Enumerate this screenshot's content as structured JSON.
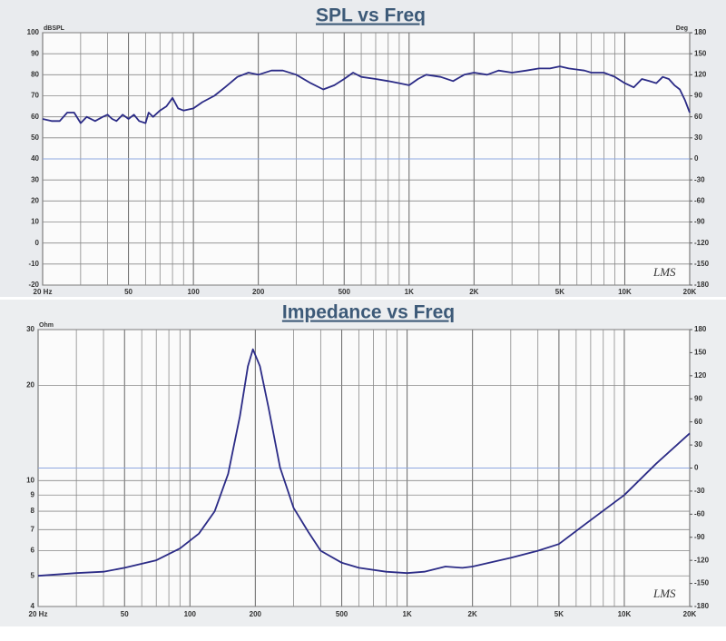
{
  "chart_data": [
    {
      "type": "line",
      "title": "SPL vs Freq",
      "ylabel": "dBSPL",
      "y2label": "Deg",
      "annotation": "LMS",
      "xscale": "log",
      "yscale": "linear",
      "color": "#2b2b86",
      "grid": true,
      "zero_line_color": "#8fa8e0",
      "xlim": [
        20,
        20000
      ],
      "xticks": [
        {
          "value": 20,
          "label": "20 Hz"
        },
        50,
        100,
        200,
        500,
        {
          "value": 1000,
          "label": "1K"
        },
        {
          "value": 2000,
          "label": "2K"
        },
        {
          "value": 5000,
          "label": "5K"
        },
        {
          "value": 10000,
          "label": "10K"
        },
        {
          "value": 20000,
          "label": "20K"
        }
      ],
      "xminor": [
        30,
        40,
        60,
        70,
        80,
        90,
        300,
        400,
        600,
        700,
        800,
        900,
        3000,
        4000,
        6000,
        7000,
        8000,
        9000
      ],
      "ylim": [
        -20,
        100
      ],
      "yticks": [
        -20,
        -10,
        0,
        10,
        20,
        30,
        40,
        50,
        60,
        70,
        80,
        90,
        100
      ],
      "y2lim": [
        -180,
        180
      ],
      "y2ticks": [
        -180,
        -150,
        -120,
        -90,
        -60,
        -30,
        0,
        30,
        60,
        90,
        120,
        150,
        180
      ],
      "x": [
        20,
        22,
        24,
        26,
        28,
        30,
        32,
        35,
        38,
        40,
        42,
        44,
        47,
        50,
        53,
        56,
        60,
        62,
        65,
        70,
        75,
        80,
        85,
        90,
        100,
        110,
        125,
        140,
        160,
        180,
        200,
        230,
        260,
        300,
        350,
        400,
        450,
        500,
        550,
        600,
        700,
        800,
        900,
        1000,
        1100,
        1200,
        1400,
        1600,
        1800,
        2000,
        2300,
        2600,
        3000,
        3500,
        4000,
        4500,
        5000,
        5500,
        6500,
        7000,
        8000,
        9000,
        10000,
        11000,
        12000,
        13000,
        14000,
        15000,
        16000,
        17000,
        18000,
        19000,
        20000
      ],
      "values": [
        59,
        58,
        58,
        62,
        62,
        57,
        60,
        58,
        60,
        61,
        59,
        58,
        61,
        59,
        61,
        58,
        57,
        62,
        60,
        63,
        65,
        69,
        64,
        63,
        64,
        67,
        70,
        74,
        79,
        81,
        80,
        82,
        82,
        80,
        76,
        73,
        75,
        78,
        81,
        79,
        78,
        77,
        76,
        75,
        78,
        80,
        79,
        77,
        80,
        81,
        80,
        82,
        81,
        82,
        83,
        83,
        84,
        83,
        82,
        81,
        81,
        79,
        76,
        74,
        78,
        77,
        76,
        79,
        78,
        75,
        73,
        68,
        62
      ]
    },
    {
      "type": "line",
      "title": "Impedance vs Freq",
      "ylabel": "Ohm",
      "annotation": "LMS",
      "xscale": "log",
      "yscale": "log",
      "color": "#2b2b86",
      "grid": true,
      "zero_line_color": "#8fa8e0",
      "xlim": [
        20,
        20000
      ],
      "xticks": [
        {
          "value": 20,
          "label": "20 Hz"
        },
        50,
        100,
        200,
        500,
        {
          "value": 1000,
          "label": "1K"
        },
        {
          "value": 2000,
          "label": "2K"
        },
        {
          "value": 5000,
          "label": "5K"
        },
        {
          "value": 10000,
          "label": "10K"
        },
        {
          "value": 20000,
          "label": "20K"
        }
      ],
      "xminor": [
        30,
        40,
        60,
        70,
        80,
        90,
        300,
        400,
        600,
        700,
        800,
        900,
        3000,
        4000,
        6000,
        7000,
        8000,
        9000
      ],
      "ylim": [
        4,
        30
      ],
      "yticks": [
        4,
        5,
        6,
        7,
        8,
        9,
        10,
        20,
        30
      ],
      "y2lim": [
        -180,
        180
      ],
      "y2ticks": [
        -180,
        -150,
        -120,
        -90,
        -60,
        -30,
        0,
        30,
        60,
        90,
        120,
        150,
        180
      ],
      "x": [
        20,
        30,
        40,
        50,
        70,
        90,
        110,
        130,
        150,
        170,
        185,
        195,
        210,
        230,
        260,
        300,
        350,
        400,
        500,
        600,
        800,
        1000,
        1200,
        1500,
        1800,
        2000,
        3000,
        4000,
        5000,
        7000,
        10000,
        14000,
        20000
      ],
      "values": [
        5.0,
        5.1,
        5.15,
        5.3,
        5.6,
        6.1,
        6.8,
        8.0,
        10.5,
        16,
        23,
        26,
        23,
        17,
        11,
        8.2,
        6.9,
        6.0,
        5.5,
        5.3,
        5.15,
        5.1,
        5.15,
        5.35,
        5.3,
        5.35,
        5.7,
        6.0,
        6.3,
        7.5,
        9.0,
        11.3,
        14.1
      ]
    }
  ]
}
